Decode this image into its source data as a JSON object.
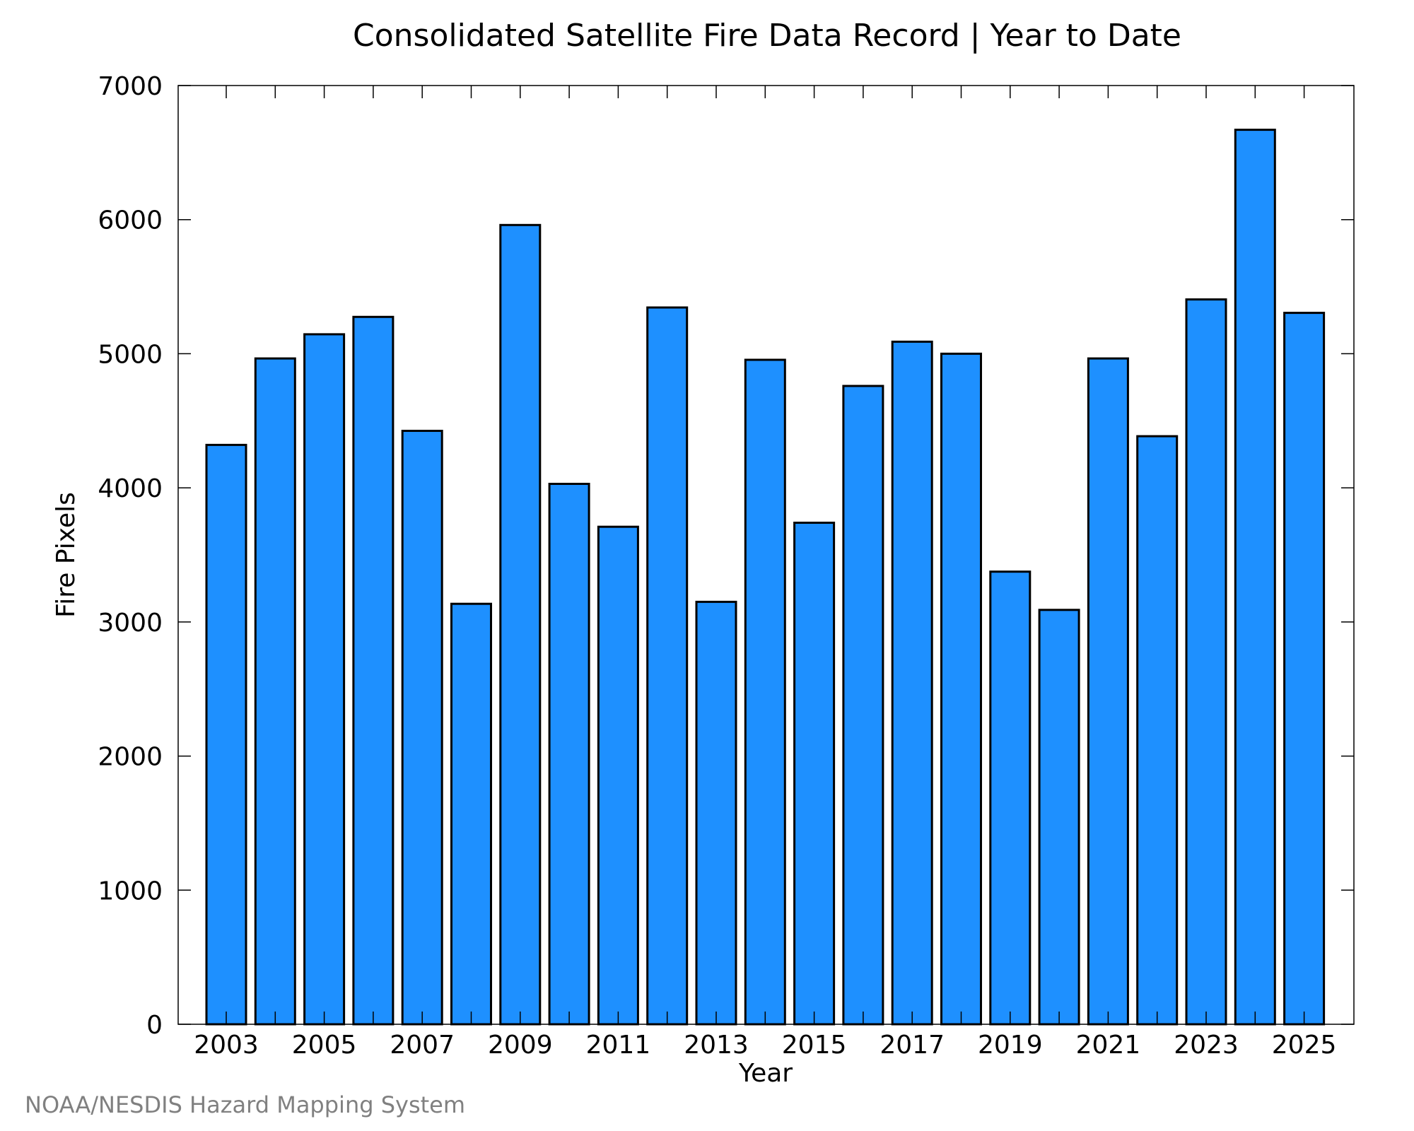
{
  "chart_data": {
    "type": "bar",
    "title": "Consolidated Satellite Fire Data Record | Year to Date",
    "xlabel": "Year",
    "ylabel": "Fire Pixels",
    "categories": [
      "2003",
      "2004",
      "2005",
      "2006",
      "2007",
      "2008",
      "2009",
      "2010",
      "2011",
      "2012",
      "2013",
      "2014",
      "2015",
      "2016",
      "2017",
      "2018",
      "2019",
      "2020",
      "2021",
      "2022",
      "2023",
      "2024",
      "2025"
    ],
    "values": [
      4320,
      4965,
      5145,
      5275,
      4425,
      3135,
      5960,
      4030,
      3710,
      5345,
      3150,
      4955,
      3740,
      4760,
      5090,
      5000,
      3375,
      3090,
      4965,
      4385,
      5405,
      6670,
      5305
    ],
    "ylim": [
      0,
      7000
    ],
    "yticks": [
      0,
      1000,
      2000,
      3000,
      4000,
      5000,
      6000,
      7000
    ],
    "xtick_labels": [
      "2003",
      "2005",
      "2007",
      "2009",
      "2011",
      "2013",
      "2015",
      "2017",
      "2019",
      "2021",
      "2023",
      "2025"
    ],
    "bar_color": "#1e90ff",
    "grid": false
  },
  "credit": "NOAA/NESDIS Hazard Mapping System"
}
